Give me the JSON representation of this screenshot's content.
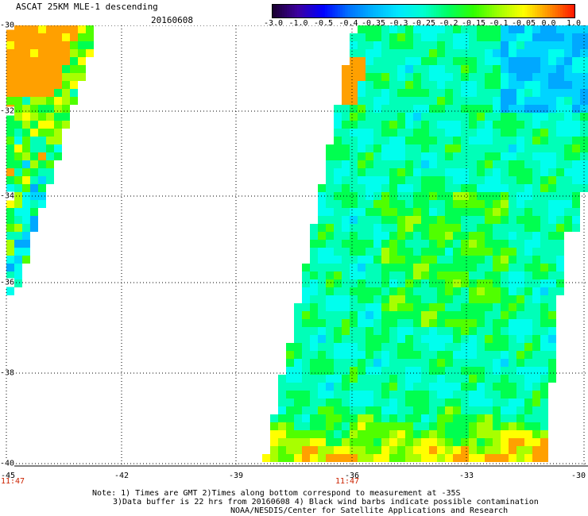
{
  "title": "ASCAT 25KM MLE-1 descending",
  "date": "20160608",
  "colorbar": {
    "ticks": [
      "-3.0",
      "-1.0",
      "-0.5",
      "-0.4",
      "-0.35",
      "-0.3",
      "-0.25",
      "-0.2",
      "-0.15",
      "-0.1",
      "-0.05",
      "0.0",
      "1.0"
    ],
    "colors": [
      "#1a0030",
      "#3c00a0",
      "#0000ff",
      "#0070ff",
      "#00b4ff",
      "#00e8ff",
      "#00ffd0",
      "#00ff60",
      "#30ff00",
      "#a0ff00",
      "#ffff00",
      "#ff9000",
      "#ff1800"
    ]
  },
  "map": {
    "lat_labels": [
      "-30",
      "-32",
      "-34",
      "-36",
      "-38",
      "-40"
    ],
    "lon_labels": [
      "-45",
      "-42",
      "-39",
      "-36",
      "-33",
      "-30"
    ],
    "time_labels": [
      "11:47",
      "11:47"
    ]
  },
  "notes": [
    "Note: 1) Times are GMT 2)Times along bottom correspond to measurement at -35S",
    "3)Data buffer is 22 hrs from 20160608 4) Black wind barbs indicate possible contamination",
    "NOAA/NESDIS/Center for Satellite Applications and Research"
  ]
}
